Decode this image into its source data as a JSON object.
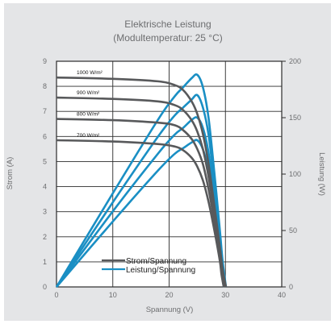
{
  "chart_data": {
    "type": "line",
    "title": "Elektrische Leistung",
    "subtitle": "(Modultemperatur: 25 °C)",
    "xlabel": "Spannung (V)",
    "ylabel": "Strom (A)",
    "y2label": "Leistung (W)",
    "xlim": [
      0,
      40
    ],
    "ylim": [
      0,
      9
    ],
    "y2lim": [
      0,
      200
    ],
    "xticks": [
      0,
      10,
      20,
      30,
      40
    ],
    "yticks": [
      0,
      1,
      2,
      3,
      4,
      5,
      6,
      7,
      8,
      9
    ],
    "y2ticks": [
      0,
      50,
      100,
      150,
      200
    ],
    "grid": true,
    "legend": {
      "position": "bottom-center",
      "entries": [
        {
          "label": "Strom/Spannung",
          "color": "#58595b"
        },
        {
          "label": "Leistung/Spannung",
          "color": "#1a8fc4"
        }
      ]
    },
    "series": [
      {
        "name": "1000 W/m²",
        "color_current": "#58595b",
        "color_power": "#1a8fc4",
        "current": {
          "x": [
            0,
            10,
            18,
            21,
            22.5,
            24,
            25,
            26,
            27,
            28,
            29,
            29.5,
            30.1
          ],
          "y": [
            8.35,
            8.3,
            8.2,
            8.05,
            7.85,
            7.4,
            6.9,
            6.1,
            4.9,
            3.3,
            1.6,
            0.7,
            0
          ]
        },
        "power": {
          "x": [
            0,
            10,
            18,
            21,
            22.5,
            24,
            25,
            26,
            27,
            28,
            29,
            29.5,
            30.1
          ],
          "y": [
            0,
            83,
            148,
            169,
            177,
            185,
            188,
            177,
            150,
            103,
            51,
            23,
            0
          ]
        }
      },
      {
        "name": "900 W/m²",
        "color_current": "#58595b",
        "color_power": "#1a8fc4",
        "current": {
          "x": [
            0,
            10,
            18,
            21,
            22.5,
            24,
            25,
            26,
            27,
            28,
            29,
            29.5,
            29.9
          ],
          "y": [
            7.55,
            7.5,
            7.4,
            7.25,
            7.05,
            6.65,
            6.2,
            5.5,
            4.4,
            3.0,
            1.4,
            0.6,
            0
          ]
        },
        "power": {
          "x": [
            0,
            10,
            18,
            21,
            22.5,
            24,
            25,
            26,
            27,
            28,
            29,
            29.5,
            29.9
          ],
          "y": [
            0,
            75,
            133,
            152,
            159,
            166,
            170,
            159,
            135,
            93,
            45,
            20,
            0
          ]
        }
      },
      {
        "name": "800 W/m²",
        "color_current": "#58595b",
        "color_power": "#1a8fc4",
        "current": {
          "x": [
            0,
            10,
            18,
            21,
            22.5,
            24,
            25,
            26,
            27,
            28,
            29,
            29.4,
            29.8
          ],
          "y": [
            6.7,
            6.65,
            6.55,
            6.45,
            6.25,
            5.9,
            5.5,
            4.9,
            3.9,
            2.65,
            1.2,
            0.55,
            0
          ]
        },
        "power": {
          "x": [
            0,
            10,
            18,
            21,
            22.5,
            24,
            25,
            26,
            27,
            28,
            29,
            29.4,
            29.8
          ],
          "y": [
            0,
            67,
            118,
            135,
            141,
            148,
            150,
            141,
            119,
            82,
            39,
            18,
            0
          ]
        }
      },
      {
        "name": "700 W/m²",
        "color_current": "#58595b",
        "color_power": "#1a8fc4",
        "current": {
          "x": [
            0,
            10,
            18,
            21,
            22.5,
            24,
            25,
            26,
            27,
            28,
            29,
            29.3,
            29.7
          ],
          "y": [
            5.85,
            5.8,
            5.7,
            5.6,
            5.45,
            5.15,
            4.8,
            4.25,
            3.4,
            2.3,
            1.05,
            0.5,
            0
          ]
        },
        "power": {
          "x": [
            0,
            10,
            18,
            21,
            22.5,
            24,
            25,
            26,
            27,
            28,
            29,
            29.3,
            29.7
          ],
          "y": [
            0,
            58,
            103,
            118,
            123,
            128,
            130,
            122,
            103,
            71,
            34,
            15,
            0
          ]
        }
      }
    ]
  }
}
